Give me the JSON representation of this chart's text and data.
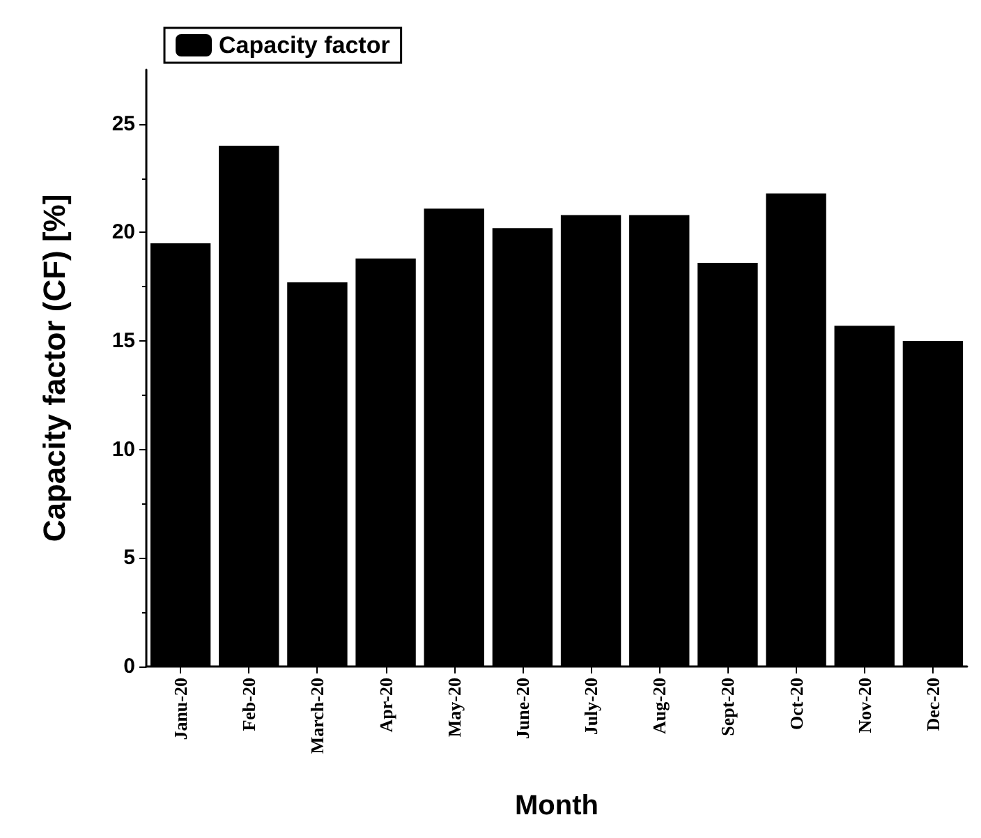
{
  "chart_data": {
    "type": "bar",
    "xlabel": "Month",
    "ylabel": "Capacity factor (CF) [%]",
    "categories": [
      "Janu-20",
      "Feb-20",
      "March-20",
      "Apr-20",
      "May-20",
      "June-20",
      "July-20",
      "Aug-20",
      "Sept-20",
      "Oct-20",
      "Nov-20",
      "Dec-20"
    ],
    "series": [
      {
        "name": "Capacity factor",
        "color": "#000000",
        "values": [
          19.5,
          24.0,
          17.7,
          18.8,
          21.1,
          20.2,
          20.8,
          20.8,
          18.6,
          21.8,
          15.7,
          15.0
        ]
      }
    ],
    "ylim": [
      0,
      27.5
    ],
    "yticks": [
      0,
      5,
      10,
      15,
      20,
      25
    ],
    "grid": false,
    "legend": "top left"
  }
}
